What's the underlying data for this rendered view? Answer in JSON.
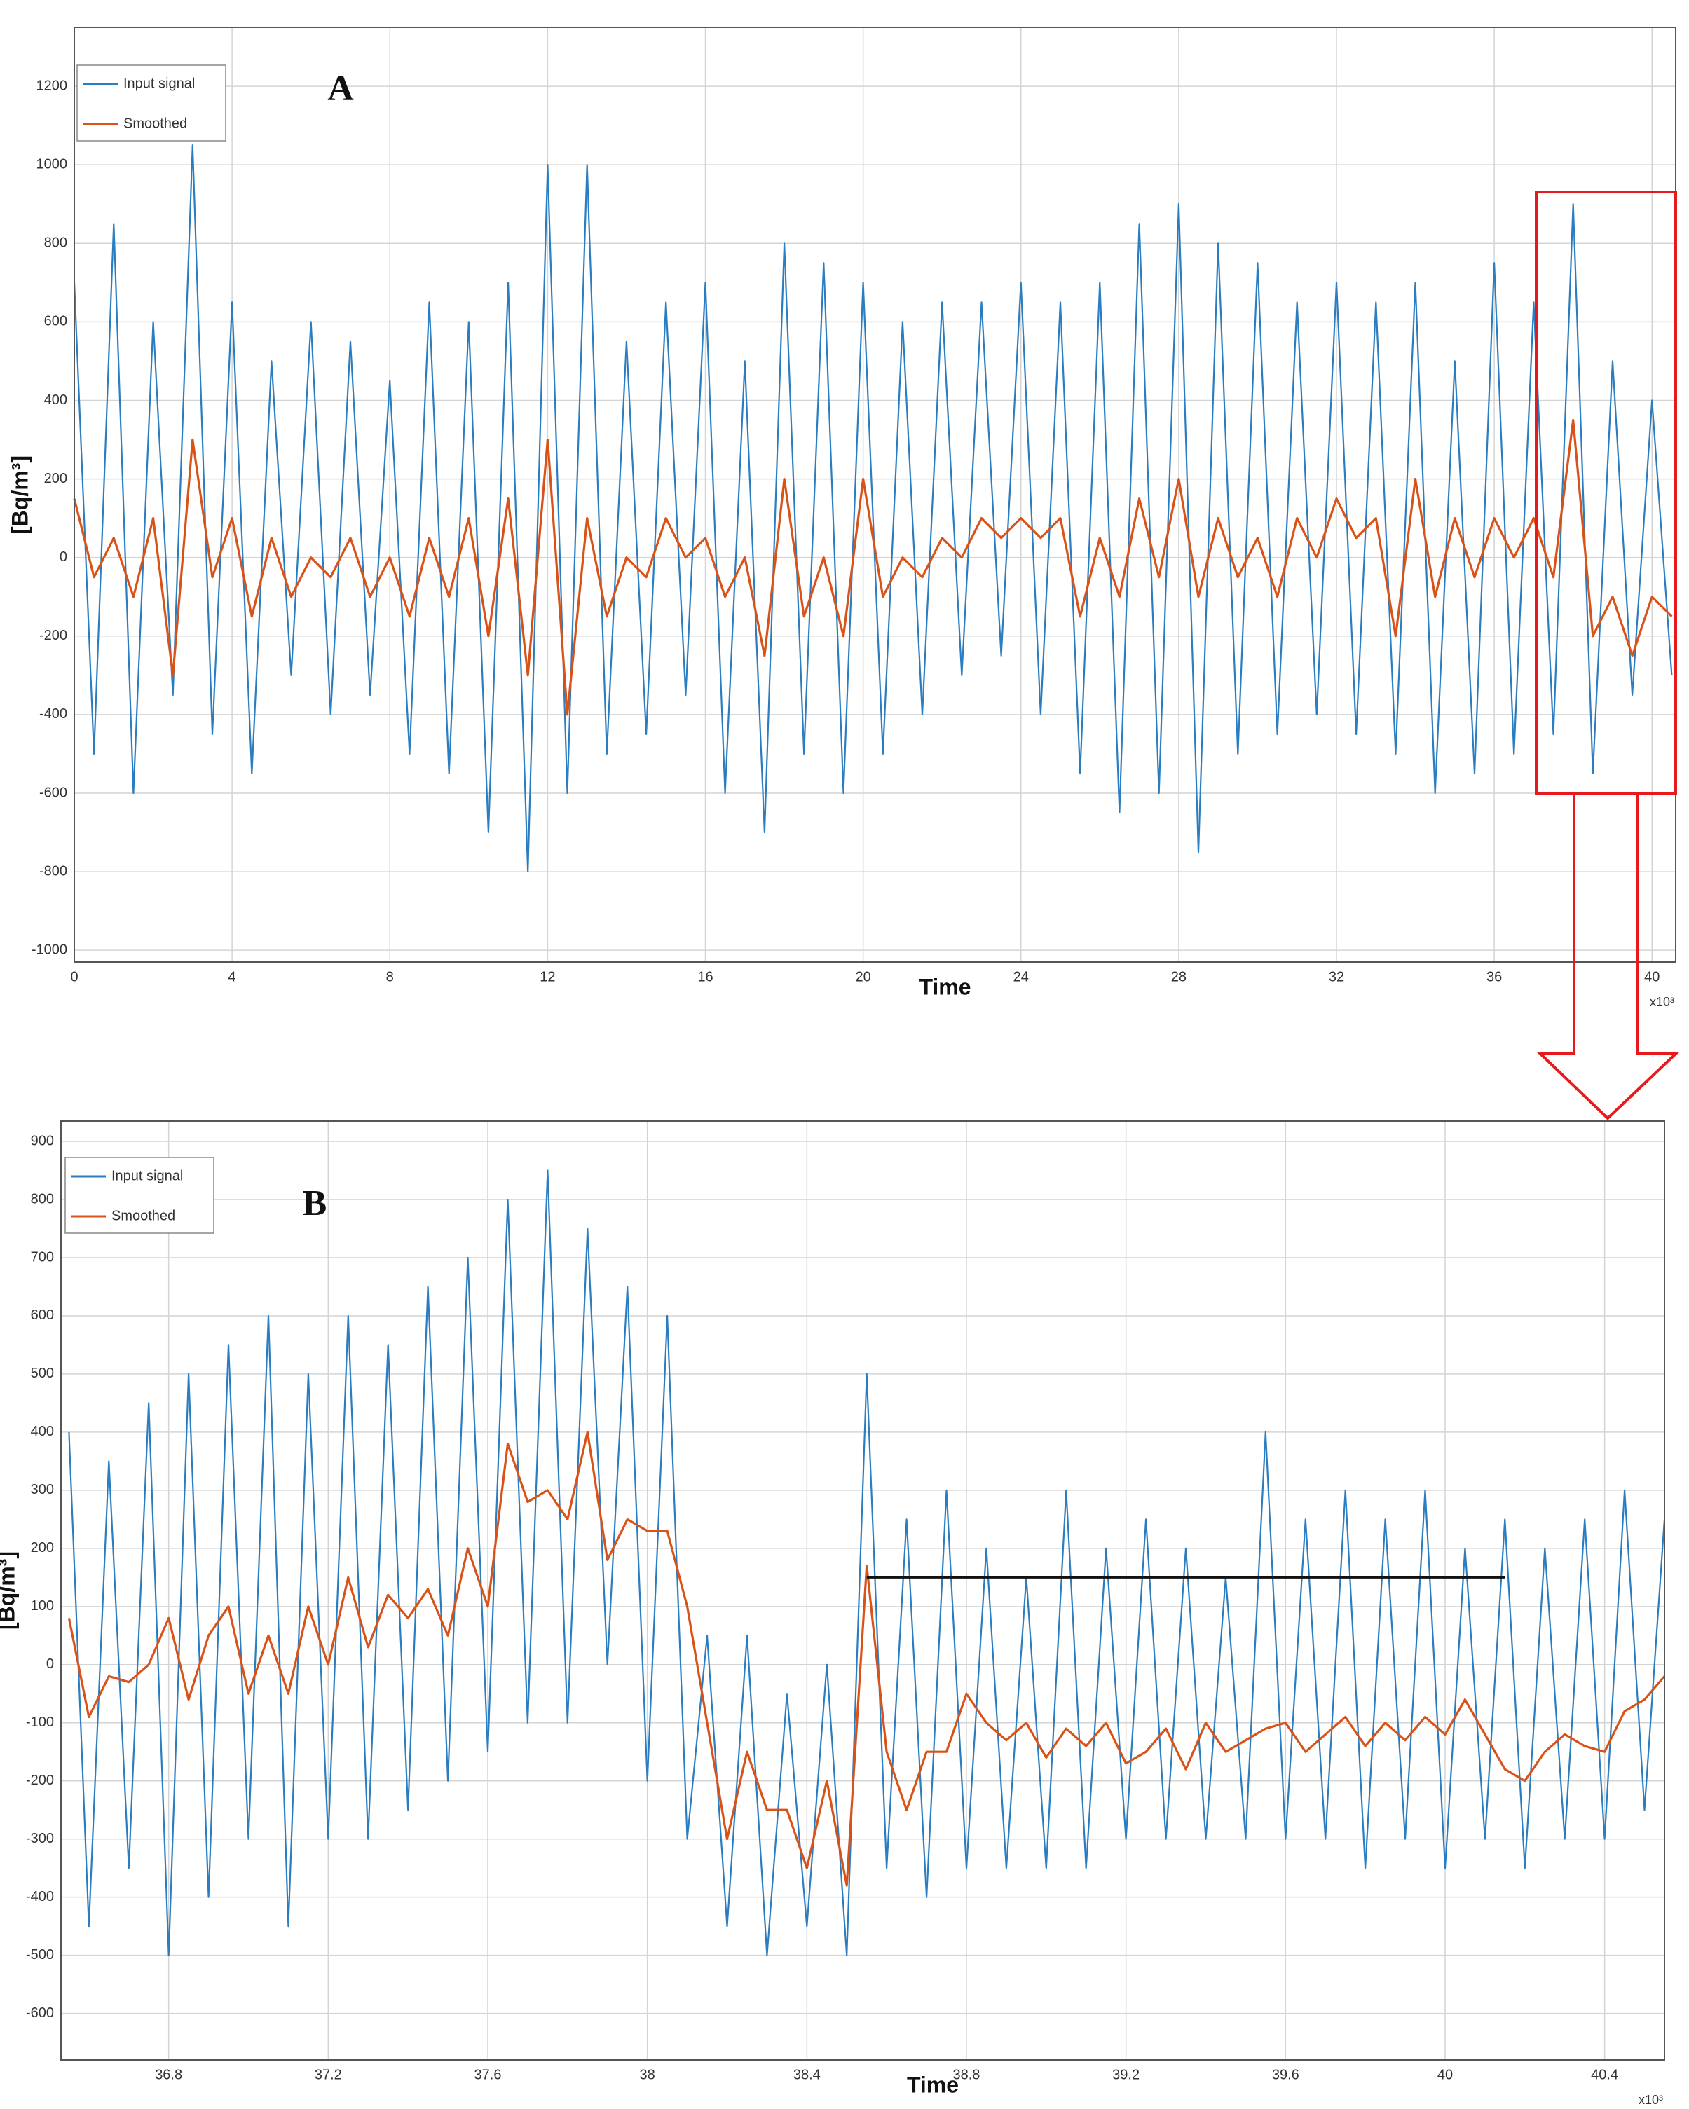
{
  "chart_data": [
    {
      "type": "line",
      "panel_label": "A",
      "xlabel": "Time",
      "ylabel": "[Bq/m³]",
      "x_multiplier": "x10³",
      "xlim": [
        0,
        40.6
      ],
      "ylim": [
        -1030,
        1350
      ],
      "xticks": [
        0,
        4,
        8,
        12,
        16,
        20,
        24,
        28,
        32,
        36,
        40
      ],
      "yticks": [
        -1000,
        -800,
        -600,
        -400,
        -200,
        0,
        200,
        400,
        600,
        800,
        1000,
        1200
      ],
      "grid": true,
      "legend": "upper left",
      "x": [
        0,
        0.5,
        1,
        1.5,
        2,
        2.5,
        3,
        3.5,
        4,
        4.5,
        5,
        5.5,
        6,
        6.5,
        7,
        7.5,
        8,
        8.5,
        9,
        9.5,
        10,
        10.5,
        11,
        11.5,
        12,
        12.5,
        13,
        13.5,
        14,
        14.5,
        15,
        15.5,
        16,
        16.5,
        17,
        17.5,
        18,
        18.5,
        19,
        19.5,
        20,
        20.5,
        21,
        21.5,
        22,
        22.5,
        23,
        23.5,
        24,
        24.5,
        25,
        25.5,
        26,
        26.5,
        27,
        27.5,
        28,
        28.5,
        29,
        29.5,
        30,
        30.5,
        31,
        31.5,
        32,
        32.5,
        33,
        33.5,
        34,
        34.5,
        35,
        35.5,
        36,
        36.5,
        37,
        37.5,
        38,
        38.5,
        39,
        39.5,
        40,
        40.5
      ],
      "series": [
        {
          "name": "Input signal",
          "color": "#2a7dc0",
          "values": [
            700,
            -500,
            850,
            -600,
            600,
            -350,
            1050,
            -450,
            650,
            -550,
            500,
            -300,
            600,
            -400,
            550,
            -350,
            450,
            -500,
            650,
            -550,
            600,
            -700,
            700,
            -800,
            1000,
            -600,
            1000,
            -500,
            550,
            -450,
            650,
            -350,
            700,
            -600,
            500,
            -700,
            800,
            -500,
            750,
            -600,
            700,
            -500,
            600,
            -400,
            650,
            -300,
            650,
            -250,
            700,
            -400,
            650,
            -550,
            700,
            -650,
            850,
            -600,
            900,
            -750,
            800,
            -500,
            750,
            -450,
            650,
            -400,
            700,
            -450,
            650,
            -500,
            700,
            -600,
            500,
            -550,
            750,
            -500,
            650,
            -450,
            900,
            -550,
            500,
            -350,
            400,
            -300
          ]
        },
        {
          "name": "Smoothed",
          "color": "#d95319",
          "values": [
            150,
            -50,
            50,
            -100,
            100,
            -300,
            300,
            -50,
            100,
            -150,
            50,
            -100,
            0,
            -50,
            50,
            -100,
            0,
            -150,
            50,
            -100,
            100,
            -200,
            150,
            -300,
            300,
            -400,
            100,
            -150,
            0,
            -50,
            100,
            0,
            50,
            -100,
            0,
            -250,
            200,
            -150,
            0,
            -200,
            200,
            -100,
            0,
            -50,
            50,
            0,
            100,
            50,
            100,
            50,
            100,
            -150,
            50,
            -100,
            150,
            -50,
            200,
            -100,
            100,
            -50,
            50,
            -100,
            100,
            0,
            150,
            50,
            100,
            -200,
            200,
            -100,
            100,
            -50,
            100,
            0,
            100,
            -50,
            350,
            -200,
            -100,
            -250,
            -100,
            -150
          ]
        }
      ]
    },
    {
      "type": "line",
      "panel_label": "B",
      "xlabel": "Time",
      "ylabel": "[Bq/m³]",
      "x_multiplier": "x10³",
      "xlim": [
        36.53,
        40.55
      ],
      "ylim": [
        -680,
        935
      ],
      "xticks": [
        36.8,
        37.2,
        37.6,
        38,
        38.4,
        38.8,
        39.2,
        39.6,
        40,
        40.4
      ],
      "yticks": [
        -600,
        -500,
        -400,
        -300,
        -200,
        -100,
        0,
        100,
        200,
        300,
        400,
        500,
        600,
        700,
        800,
        900
      ],
      "grid": true,
      "legend": "upper left",
      "reference_line": {
        "x": [
          38.55,
          40.15
        ],
        "y": 150,
        "color": "#111111"
      },
      "x": [
        36.55,
        36.6,
        36.65,
        36.7,
        36.75,
        36.8,
        36.85,
        36.9,
        36.95,
        37,
        37.05,
        37.1,
        37.15,
        37.2,
        37.25,
        37.3,
        37.35,
        37.4,
        37.45,
        37.5,
        37.55,
        37.6,
        37.65,
        37.7,
        37.75,
        37.8,
        37.85,
        37.9,
        37.95,
        38,
        38.05,
        38.1,
        38.15,
        38.2,
        38.25,
        38.3,
        38.35,
        38.4,
        38.45,
        38.5,
        38.55,
        38.6,
        38.65,
        38.7,
        38.75,
        38.8,
        38.85,
        38.9,
        38.95,
        39,
        39.05,
        39.1,
        39.15,
        39.2,
        39.25,
        39.3,
        39.35,
        39.4,
        39.45,
        39.5,
        39.55,
        39.6,
        39.65,
        39.7,
        39.75,
        39.8,
        39.85,
        39.9,
        39.95,
        40,
        40.05,
        40.1,
        40.15,
        40.2,
        40.25,
        40.3,
        40.35,
        40.4,
        40.45,
        40.5,
        40.55
      ],
      "series": [
        {
          "name": "Input signal",
          "color": "#2a7dc0",
          "values": [
            400,
            -450,
            350,
            -350,
            450,
            -500,
            500,
            -400,
            550,
            -300,
            600,
            -450,
            500,
            -300,
            600,
            -300,
            550,
            -250,
            650,
            -200,
            700,
            -150,
            800,
            -100,
            850,
            -100,
            750,
            0,
            650,
            -200,
            600,
            -300,
            50,
            -450,
            50,
            -500,
            -50,
            -450,
            0,
            -500,
            500,
            -350,
            250,
            -400,
            300,
            -350,
            200,
            -350,
            150,
            -350,
            300,
            -350,
            200,
            -300,
            250,
            -300,
            200,
            -300,
            150,
            -300,
            400,
            -300,
            250,
            -300,
            300,
            -350,
            250,
            -300,
            300,
            -350,
            200,
            -300,
            250,
            -350,
            200,
            -300,
            250,
            -300,
            300,
            -250,
            250
          ]
        },
        {
          "name": "Smoothed",
          "color": "#d95319",
          "values": [
            80,
            -90,
            -20,
            -30,
            0,
            80,
            -60,
            50,
            100,
            -50,
            50,
            -50,
            100,
            0,
            150,
            30,
            120,
            80,
            130,
            50,
            200,
            100,
            380,
            280,
            300,
            250,
            400,
            180,
            250,
            230,
            230,
            100,
            -100,
            -300,
            -150,
            -250,
            -250,
            -350,
            -200,
            -380,
            170,
            -150,
            -250,
            -150,
            -150,
            -50,
            -100,
            -130,
            -100,
            -160,
            -110,
            -140,
            -100,
            -170,
            -150,
            -110,
            -180,
            -100,
            -150,
            -130,
            -110,
            -100,
            -150,
            -120,
            -90,
            -140,
            -100,
            -130,
            -90,
            -120,
            -60,
            -120,
            -180,
            -200,
            -150,
            -120,
            -140,
            -150,
            -80,
            -60,
            -20
          ]
        }
      ]
    }
  ]
}
